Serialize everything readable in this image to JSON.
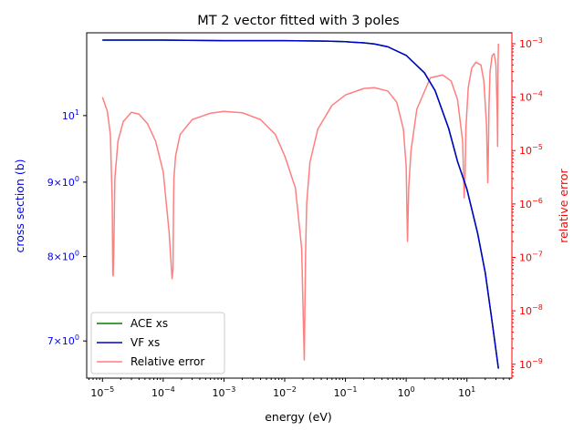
{
  "chart_data": {
    "type": "line",
    "title": "MT 2 vector fitted with 3 poles",
    "xlabel": "energy (eV)",
    "ylabel_left": "cross section (b)",
    "ylabel_right": "relative error",
    "x_scale": "log",
    "y_left_scale": "log",
    "y_right_scale": "log",
    "xlim": [
      5.5e-06,
      55
    ],
    "ylim_left": [
      6.6,
      11.4
    ],
    "ylim_right": [
      5.5e-10,
      0.0016
    ],
    "grid": false,
    "legend_position": "lower-left",
    "colors": {
      "ace": "#008000",
      "vf": "#0000cc",
      "error": "#ff7f7f",
      "left_axis": "#0000ff",
      "right_axis": "#ff0000",
      "axes": "#000000"
    },
    "x_ticks": [
      {
        "value": 1e-05,
        "base": "10",
        "exp": "−5"
      },
      {
        "value": 0.0001,
        "base": "10",
        "exp": "−4"
      },
      {
        "value": 0.001,
        "base": "10",
        "exp": "−3"
      },
      {
        "value": 0.01,
        "base": "10",
        "exp": "−2"
      },
      {
        "value": 0.1,
        "base": "10",
        "exp": "−1"
      },
      {
        "value": 1,
        "base": "10",
        "exp": "0"
      },
      {
        "value": 10,
        "base": "10",
        "exp": "1"
      }
    ],
    "y_left_ticks": [
      {
        "value": 10,
        "base": "10",
        "exp": "1"
      },
      {
        "value": 9,
        "base": "9×10",
        "exp": "0"
      },
      {
        "value": 8,
        "base": "8×10",
        "exp": "0"
      },
      {
        "value": 7,
        "base": "7×10",
        "exp": "0"
      }
    ],
    "y_right_ticks": [
      {
        "value": 0.001,
        "base": "10",
        "exp": "−3"
      },
      {
        "value": 0.0001,
        "base": "10",
        "exp": "−4"
      },
      {
        "value": 1e-05,
        "base": "10",
        "exp": "−5"
      },
      {
        "value": 1e-06,
        "base": "10",
        "exp": "−6"
      },
      {
        "value": 1e-07,
        "base": "10",
        "exp": "−7"
      },
      {
        "value": 1e-08,
        "base": "10",
        "exp": "−8"
      },
      {
        "value": 1e-09,
        "base": "10",
        "exp": "−9"
      }
    ],
    "series": [
      {
        "name": "ACE xs",
        "axis": "left",
        "color": "#008000",
        "x": [
          1e-05,
          0.0001,
          0.001,
          0.01,
          0.05,
          0.1,
          0.2,
          0.3,
          0.5,
          1,
          2,
          3,
          5,
          7,
          10,
          15,
          20,
          25,
          30,
          33
        ],
        "y": [
          11.27,
          11.27,
          11.26,
          11.26,
          11.25,
          11.24,
          11.22,
          11.2,
          11.15,
          11.0,
          10.7,
          10.4,
          9.8,
          9.3,
          8.9,
          8.3,
          7.8,
          7.3,
          6.9,
          6.7
        ]
      },
      {
        "name": "VF xs",
        "axis": "left",
        "color": "#0000cc",
        "x": [
          1e-05,
          0.0001,
          0.001,
          0.01,
          0.05,
          0.1,
          0.2,
          0.3,
          0.5,
          1,
          2,
          3,
          5,
          7,
          10,
          15,
          20,
          25,
          30,
          33
        ],
        "y": [
          11.27,
          11.27,
          11.26,
          11.26,
          11.25,
          11.24,
          11.22,
          11.2,
          11.15,
          11.0,
          10.7,
          10.4,
          9.8,
          9.3,
          8.9,
          8.3,
          7.8,
          7.3,
          6.9,
          6.7
        ]
      },
      {
        "name": "Relative error",
        "axis": "right",
        "color": "#ff7f7f",
        "x": [
          1e-05,
          1.2e-05,
          1.35e-05,
          1.45e-05,
          1.48e-05,
          1.5e-05,
          1.53e-05,
          1.6e-05,
          1.8e-05,
          2.2e-05,
          3e-05,
          4e-05,
          5.5e-05,
          7.5e-05,
          0.0001,
          0.000125,
          0.00014,
          0.000145,
          0.000148,
          0.00015,
          0.00016,
          0.00019,
          0.0003,
          0.0006,
          0.001,
          0.002,
          0.004,
          0.007,
          0.01,
          0.015,
          0.019,
          0.021,
          0.022,
          0.023,
          0.026,
          0.035,
          0.06,
          0.1,
          0.2,
          0.3,
          0.5,
          0.7,
          0.9,
          1.0,
          1.05,
          1.1,
          1.2,
          1.5,
          2.5,
          4,
          5.5,
          7,
          8.5,
          9.0,
          9.3,
          9.6,
          10.5,
          12,
          14,
          17,
          19,
          21,
          22,
          22.5,
          23,
          24,
          26,
          28,
          30,
          31.5,
          32,
          32.5,
          33
        ],
        "y": [
          0.0001,
          5.5e-05,
          2e-05,
          1e-06,
          5e-08,
          4.5e-08,
          1e-07,
          3e-06,
          1.5e-05,
          3.5e-05,
          5.2e-05,
          4.8e-05,
          3.2e-05,
          1.5e-05,
          4e-06,
          3e-07,
          4e-08,
          6e-08,
          1e-06,
          3e-06,
          8e-06,
          2e-05,
          3.8e-05,
          5e-05,
          5.4e-05,
          5.1e-05,
          3.8e-05,
          2e-05,
          8e-06,
          2e-06,
          1.5e-07,
          1.2e-09,
          1e-07,
          1e-06,
          6e-06,
          2.5e-05,
          7e-05,
          0.00011,
          0.000145,
          0.00015,
          0.00013,
          8e-05,
          2.5e-05,
          5e-06,
          2e-07,
          2e-06,
          1e-05,
          6e-05,
          0.00023,
          0.00026,
          0.0002,
          9e-05,
          1.5e-05,
          1.3e-06,
          3e-06,
          2.5e-05,
          0.00015,
          0.00035,
          0.00045,
          0.0004,
          0.0002,
          3e-05,
          2.5e-06,
          8e-06,
          6e-05,
          0.0003,
          0.0006,
          0.00065,
          0.0004,
          5e-05,
          1.2e-05,
          0.0004,
          0.001
        ]
      }
    ]
  }
}
